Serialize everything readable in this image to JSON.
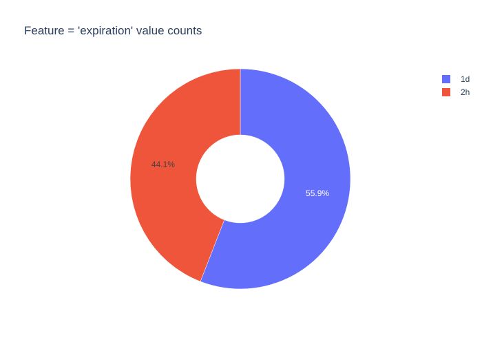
{
  "chart_data": {
    "type": "pie",
    "hole": true,
    "title": "Feature = 'expiration' value counts",
    "labels": [
      "1d",
      "2h"
    ],
    "percent_labels": [
      "55.9%",
      "44.1%"
    ],
    "values": [
      55.9,
      44.1
    ],
    "colors": [
      "#636efa",
      "#ef553b"
    ],
    "label_colors": [
      "#ffffff",
      "#444444"
    ],
    "direction": "clockwise",
    "legend_position": "top-right"
  }
}
